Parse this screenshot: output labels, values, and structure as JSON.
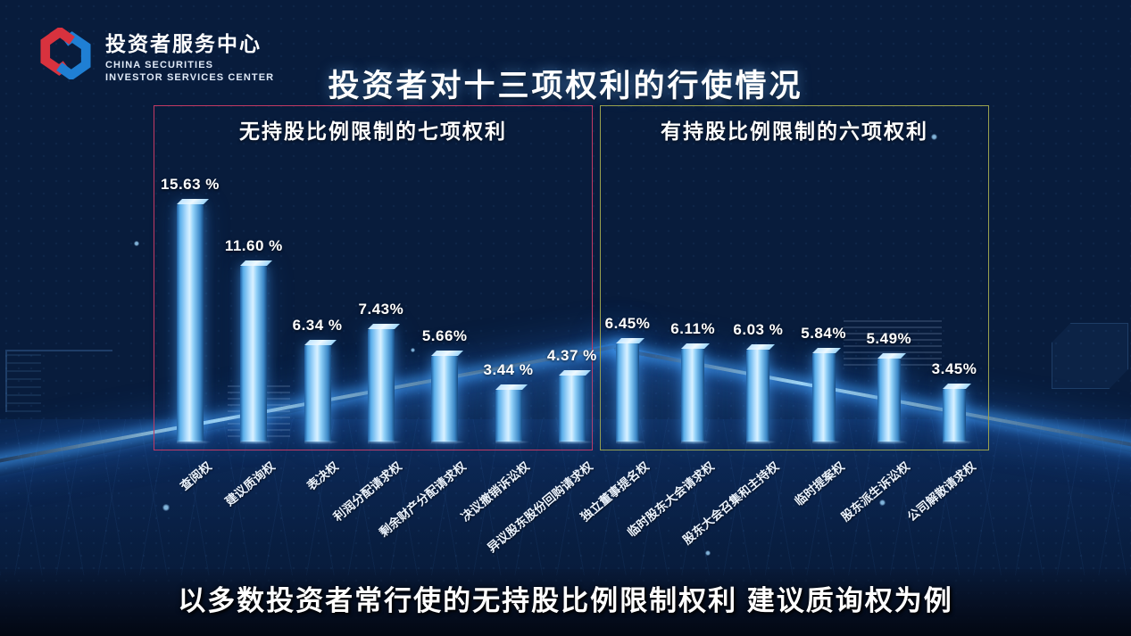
{
  "header": {
    "logo": {
      "title": "投资者服务中心",
      "subtitle_line1": "CHINA SECURITIES",
      "subtitle_line2": "INVESTOR SERVICES CENTER"
    },
    "title": "投资者对十三项权利的行使情况"
  },
  "caption": "以多数投资者常行使的无持股比例限制权利 建议质询权为例",
  "colors": {
    "background_base": "#0a2142",
    "bar": "#5fb4ee",
    "beam": "#63b8ff",
    "left_box_border": "#c23a64",
    "right_box_border": "#9aa14e",
    "logo_red": "#d8323e",
    "logo_blue": "#1f7fd4"
  },
  "chart_data": {
    "type": "bar",
    "title": "投资者对十三项权利的行使情况",
    "unit": "%",
    "ylim": [
      0,
      16
    ],
    "grid": false,
    "legend": null,
    "groups": [
      {
        "label": "无持股比例限制的七项权利",
        "border_color": "#c23a64",
        "categories": [
          "查阅权",
          "建议质询权",
          "表决权",
          "利润分配请求权",
          "剩余财产分配请求权",
          "决议撤销诉讼权",
          "异议股东股份回购请求权"
        ],
        "values": [
          15.63,
          11.6,
          6.34,
          7.43,
          5.66,
          3.44,
          4.37
        ],
        "value_labels": [
          "15.63 %",
          "11.60 %",
          "6.34 %",
          "7.43%",
          "5.66%",
          "3.44 %",
          "4.37 %"
        ]
      },
      {
        "label": "有持股比例限制的六项权利",
        "border_color": "#9aa14e",
        "categories": [
          "独立董事提名权",
          "临时股东大会请求权",
          "股东大会召集和主持权",
          "临时提案权",
          "股东派生诉讼权",
          "公司解散请求权"
        ],
        "values": [
          6.45,
          6.11,
          6.03,
          5.84,
          5.49,
          3.45
        ],
        "value_labels": [
          "6.45%",
          "6.11%",
          "6.03 %",
          "5.84%",
          "5.49%",
          "3.45%"
        ]
      }
    ]
  }
}
